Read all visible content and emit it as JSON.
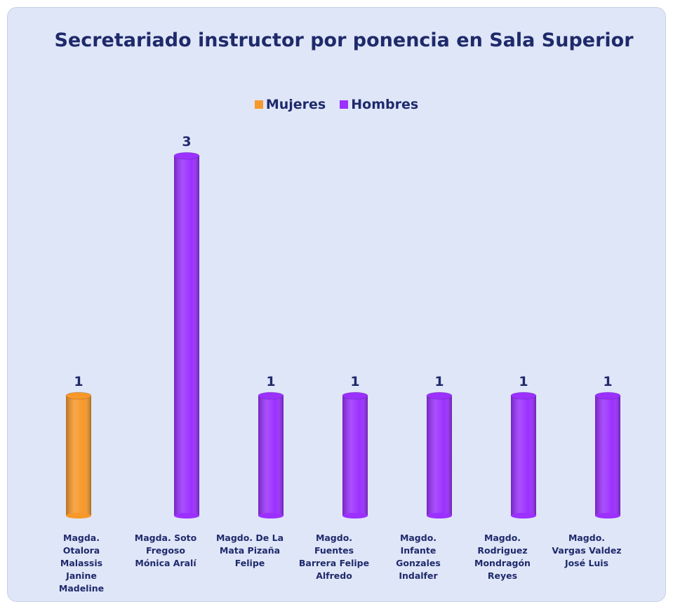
{
  "chart_data": {
    "type": "bar",
    "title": "Secretariado instructor por ponencia en Sala Superior",
    "categories": [
      "Magda. Otalora Malassis Janine Madeline",
      "Magda. Soto Fregoso Mónica Aralí",
      "Magdo. De La Mata Pizaña Felipe",
      "Magdo. Fuentes Barrera Felipe Alfredo",
      "Magdo. Infante Gonzales Indalfer",
      "Magdo. Rodriguez Mondragón Reyes",
      "Magdo. Vargas Valdez  José Luis"
    ],
    "series": [
      {
        "name": "Mujeres",
        "color": "#f7982a",
        "values": [
          1,
          null,
          null,
          null,
          null,
          null,
          null
        ]
      },
      {
        "name": "Hombres",
        "color": "#9b30ff",
        "values": [
          null,
          3,
          1,
          1,
          1,
          1,
          1
        ]
      }
    ],
    "ylim": [
      0,
      3.2
    ],
    "legend": "top"
  }
}
